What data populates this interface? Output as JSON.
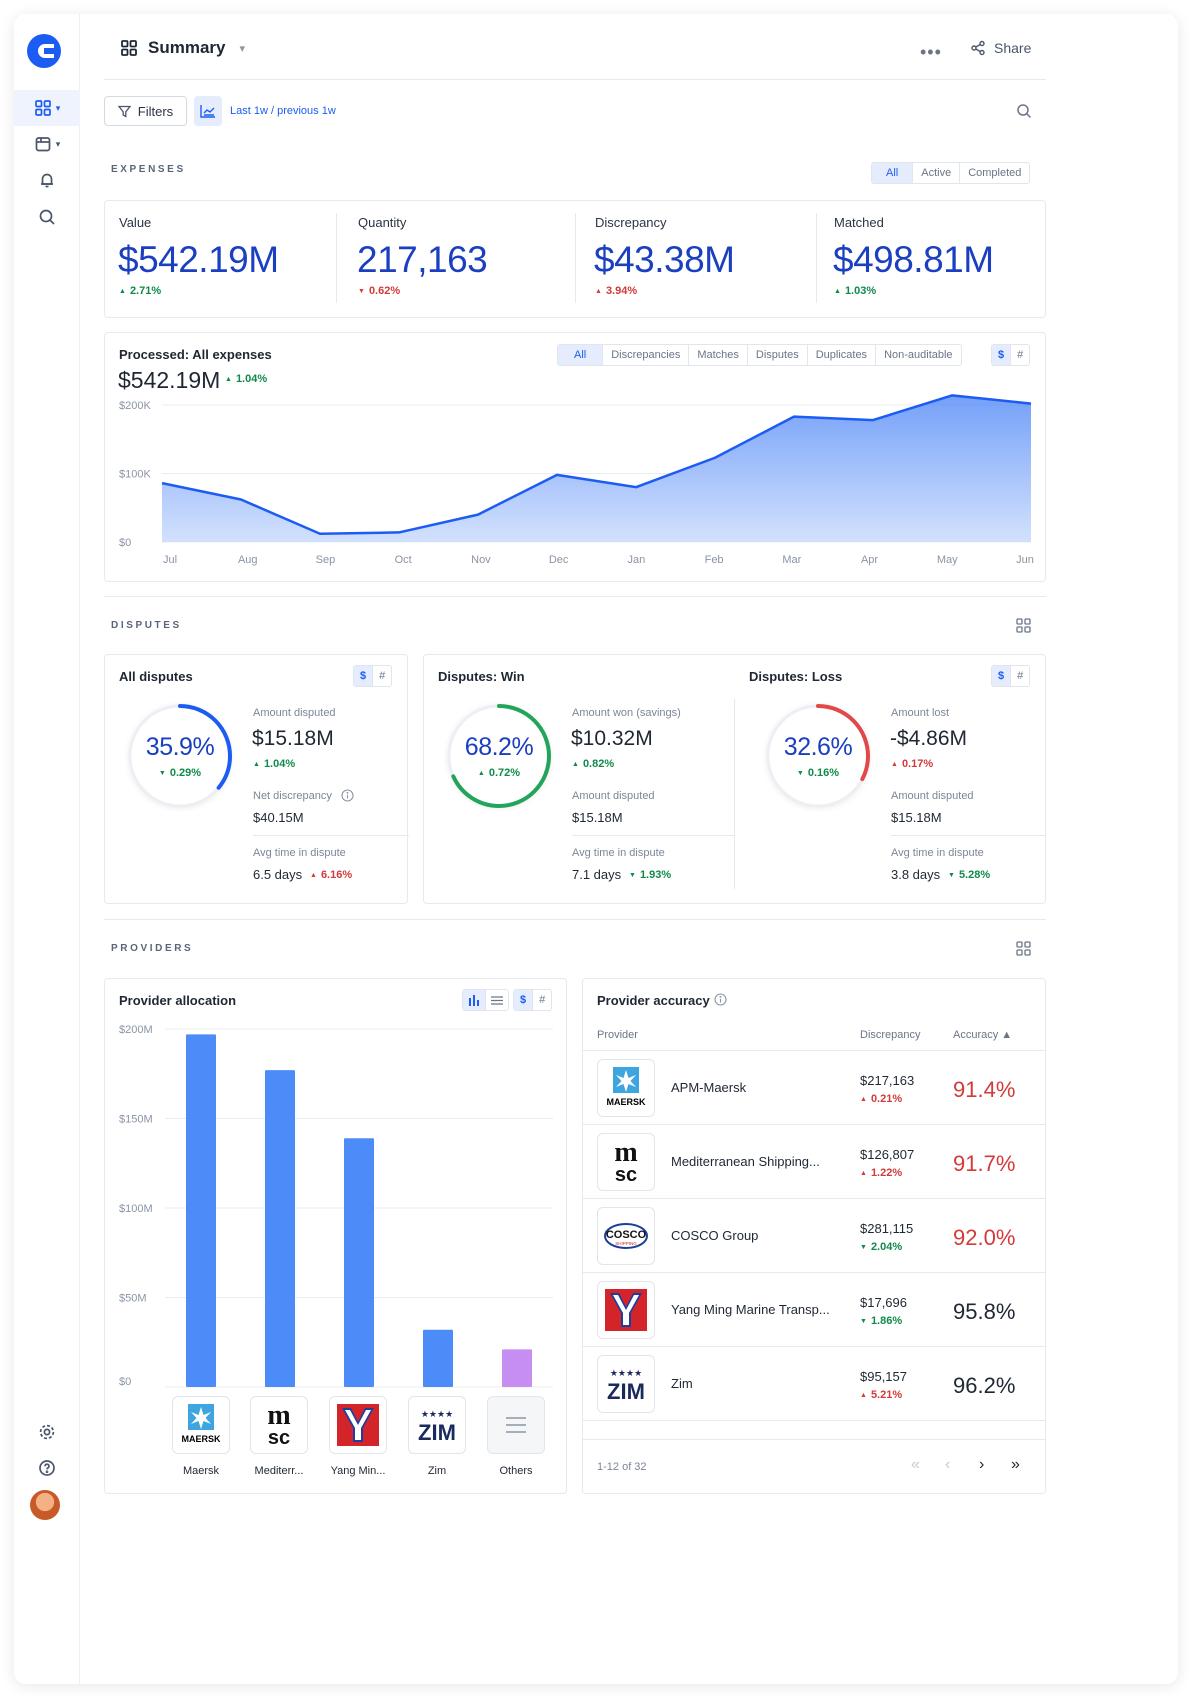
{
  "header": {
    "title": "Summary",
    "share_label": "Share",
    "more_label": "•••"
  },
  "filters": {
    "filters_label": "Filters",
    "range_label": "Last 1w / previous 1w"
  },
  "expenses": {
    "section_label": "EXPENSES",
    "tabs": [
      "All",
      "Active",
      "Completed"
    ],
    "kpis": [
      {
        "label": "Value",
        "value": "$542.19M",
        "change": "2.71%",
        "direction": "up"
      },
      {
        "label": "Quantity",
        "value": "217,163",
        "change": "0.62%",
        "direction": "down"
      },
      {
        "label": "Discrepancy",
        "value": "$43.38M",
        "change": "3.94%",
        "direction": "down"
      },
      {
        "label": "Matched",
        "value": "$498.81M",
        "change": "1.03%",
        "direction": "up"
      }
    ]
  },
  "processed": {
    "title": "Processed: All expenses",
    "total": "$542.19M",
    "change": "1.04%",
    "tabs": [
      "All",
      "Discrepancies",
      "Matches",
      "Disputes",
      "Duplicates",
      "Non-auditable"
    ],
    "unit_toggle": [
      "$",
      "#"
    ]
  },
  "chart_data": {
    "type": "area",
    "categories": [
      "Jul",
      "Aug",
      "Sep",
      "Oct",
      "Nov",
      "Dec",
      "Jan",
      "Feb",
      "Mar",
      "Apr",
      "May",
      "Jun"
    ],
    "values": [
      86,
      62,
      12,
      14,
      40,
      98,
      80,
      123,
      183,
      178,
      214,
      202
    ],
    "y_tick_labels": [
      "$0",
      "$100K",
      "$200K"
    ],
    "y_ticks": [
      0,
      100,
      200
    ],
    "ylim": [
      0,
      200
    ],
    "y_unit": "K",
    "color": "#1c5cf2",
    "grid": true
  },
  "disputes": {
    "section_label": "DISPUTES",
    "unit_toggle": [
      "$",
      "#"
    ],
    "all": {
      "title": "All disputes",
      "percent": "35.9%",
      "percent_value": 35.9,
      "percent_change": "0.29%",
      "amount_label": "Amount disputed",
      "amount": "$15.18M",
      "amount_change": "1.04%",
      "net_label": "Net discrepancy",
      "net": "$40.15M",
      "avg_label": "Avg time in dispute",
      "avg": "6.5 days",
      "avg_change": "6.16%"
    },
    "win": {
      "title": "Disputes: Win",
      "percent": "68.2%",
      "percent_value": 68.2,
      "percent_change": "0.72%",
      "amount_label": "Amount won (savings)",
      "amount": "$10.32M",
      "amount_change": "0.82%",
      "disputed_label": "Amount disputed",
      "disputed": "$15.18M",
      "avg_label": "Avg time in dispute",
      "avg": "7.1 days",
      "avg_change": "1.93%"
    },
    "loss": {
      "title": "Disputes: Loss",
      "percent": "32.6%",
      "percent_value": 32.6,
      "percent_change": "0.16%",
      "amount_label": "Amount lost",
      "amount": "-$4.86M",
      "amount_change": "0.17%",
      "disputed_label": "Amount disputed",
      "disputed": "$15.18M",
      "avg_label": "Avg time in dispute",
      "avg": "3.8 days",
      "avg_change": "5.28%"
    },
    "colors": {
      "all": "#1c5cf2",
      "win": "#22a55b",
      "loss": "#e0484a"
    }
  },
  "providers": {
    "section_label": "PROVIDERS",
    "allocation": {
      "title": "Provider allocation",
      "unit_toggle": [
        "$",
        "#"
      ],
      "y_tick_labels": [
        "$0",
        "$50M",
        "$100M",
        "$150M",
        "$200M"
      ],
      "y_ticks": [
        0,
        50,
        100,
        150,
        200
      ],
      "ylim": [
        0,
        200
      ],
      "bars": [
        {
          "name": "Maersk",
          "value": 197,
          "color": "#4d8cf8"
        },
        {
          "name": "Mediterr...",
          "value": 177,
          "color": "#4d8cf8"
        },
        {
          "name": "Yang Min...",
          "value": 139,
          "color": "#4d8cf8"
        },
        {
          "name": "Zim",
          "value": 32,
          "color": "#4d8cf8"
        },
        {
          "name": "Others",
          "value": 21,
          "color": "#c58ef0"
        }
      ]
    },
    "accuracy": {
      "title": "Provider accuracy",
      "col_provider": "Provider",
      "col_discrepancy": "Discrepancy",
      "col_accuracy": "Accuracy ▲",
      "rows": [
        {
          "name": "APM-Maersk",
          "discrepancy": "$217,163",
          "change": "0.21%",
          "direction": "up-red",
          "accuracy": "91.4%",
          "acc_color": "#d33a3a"
        },
        {
          "name": "Mediterranean Shipping...",
          "discrepancy": "$126,807",
          "change": "1.22%",
          "direction": "up-red",
          "accuracy": "91.7%",
          "acc_color": "#d33a3a"
        },
        {
          "name": "COSCO Group",
          "discrepancy": "$281,115",
          "change": "2.04%",
          "direction": "down-green",
          "accuracy": "92.0%",
          "acc_color": "#d33a3a"
        },
        {
          "name": "Yang Ming Marine Transp...",
          "discrepancy": "$17,696",
          "change": "1.86%",
          "direction": "down-green",
          "accuracy": "95.8%",
          "acc_color": "#1f2733"
        },
        {
          "name": "Zim",
          "discrepancy": "$95,157",
          "change": "5.21%",
          "direction": "up-red",
          "accuracy": "96.2%",
          "acc_color": "#1f2733"
        }
      ],
      "pagination": "1-12 of 32"
    }
  },
  "logos": {
    "maersk": "MAERSK",
    "msc_top": "m",
    "msc_bottom": "sc",
    "cosco": "COSCO",
    "cosco_sub": "SHIPPING",
    "zim": "ZIM"
  }
}
